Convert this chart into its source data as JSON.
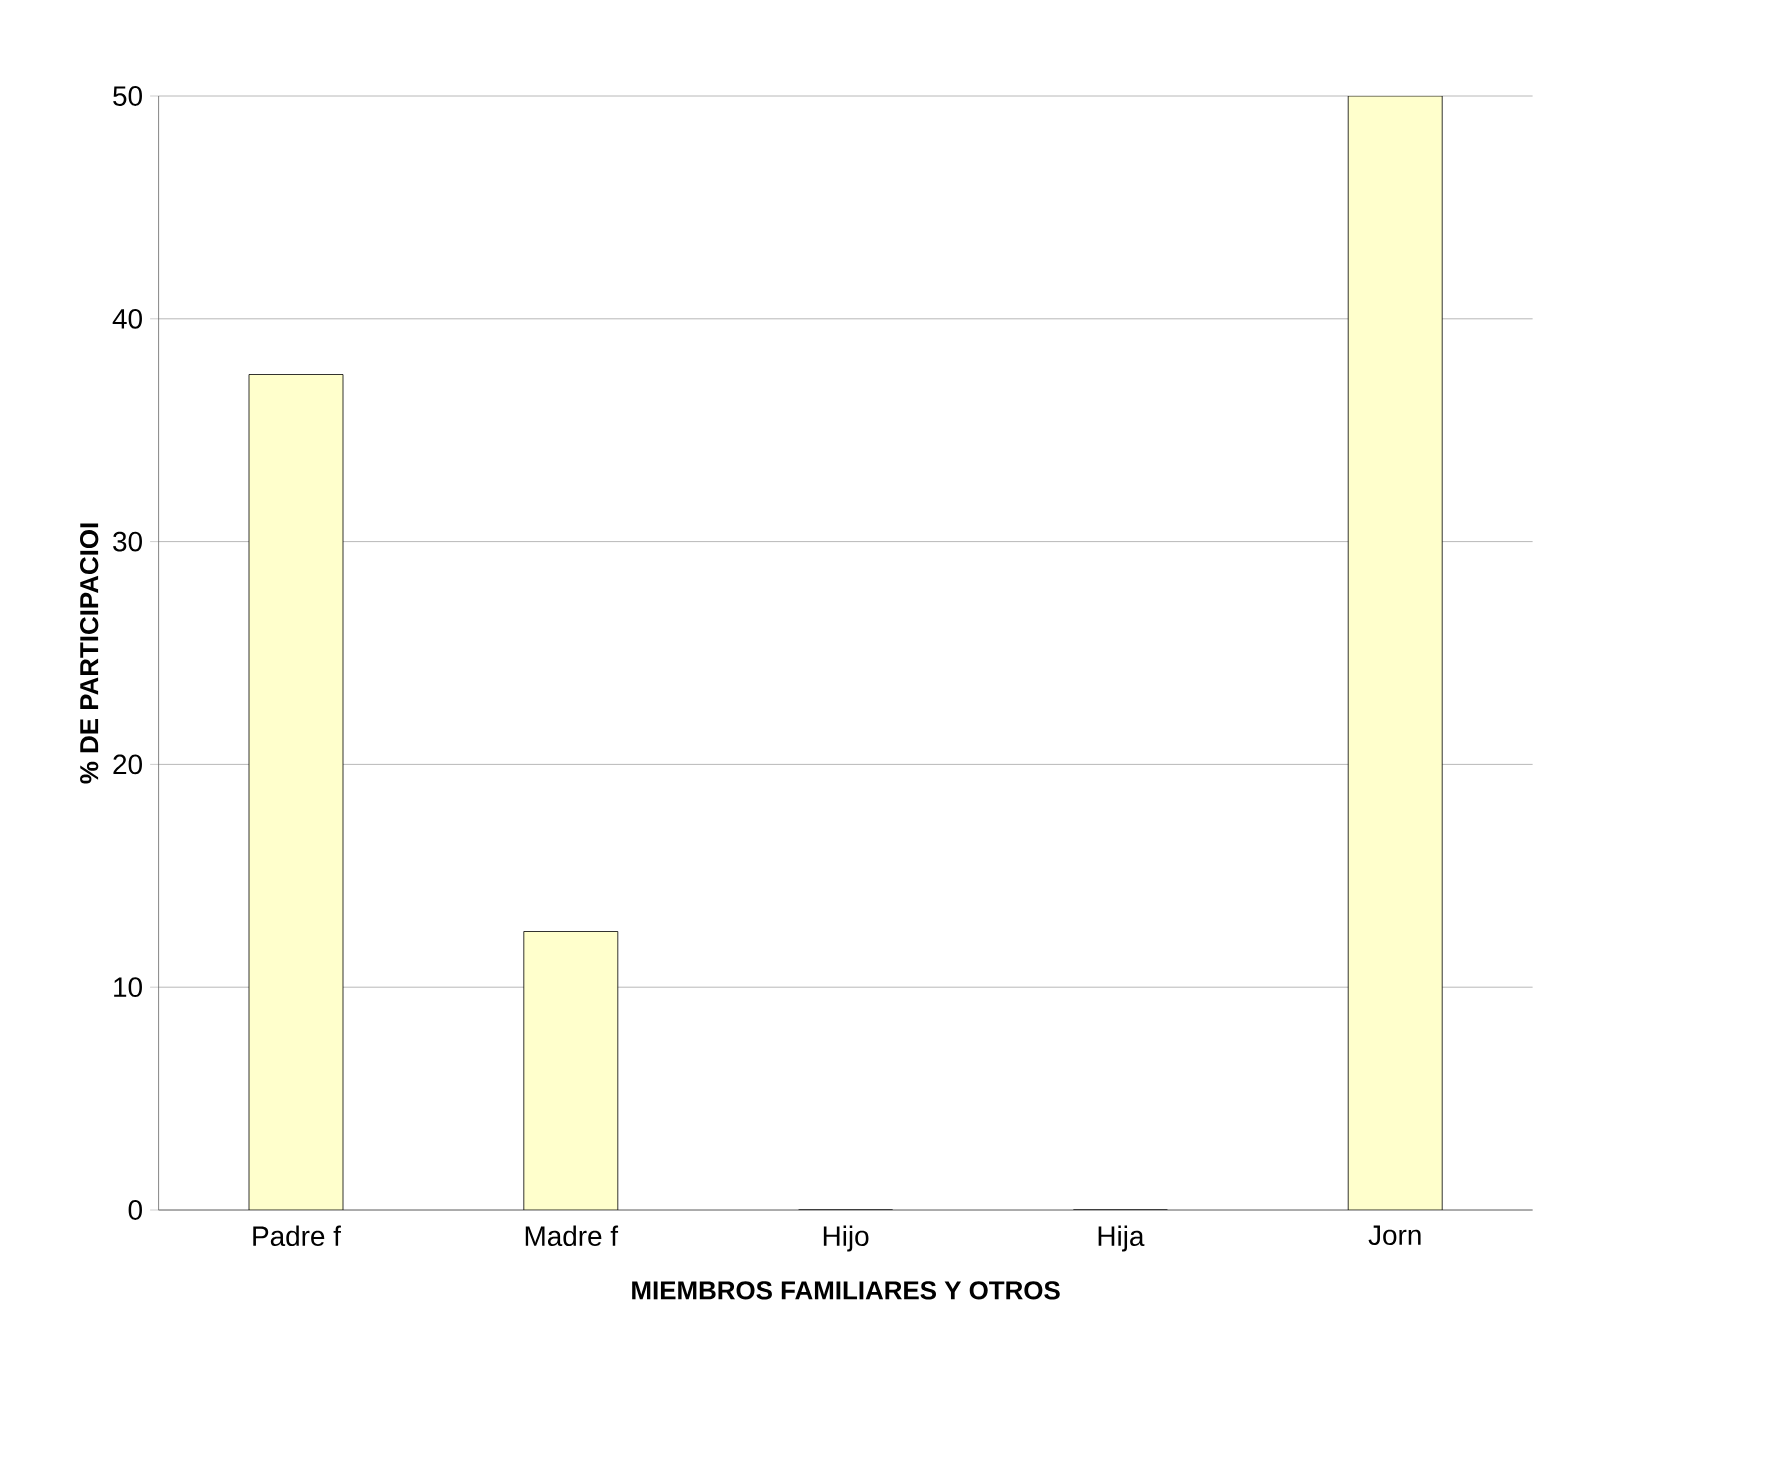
{
  "chart_data": {
    "type": "bar",
    "xlabel": "MIEMBROS FAMILIARES Y OTROS",
    "ylabel": "% DE PARTICIPACIOI",
    "categories": [
      "Padre f",
      "Madre f",
      "Hijo",
      "Hija",
      "Jorn"
    ],
    "values": [
      37.5,
      12.5,
      0,
      0,
      50
    ],
    "color": "#ffffcc",
    "ylim": [
      0,
      50
    ],
    "yticks": [
      0,
      10,
      20,
      30,
      40,
      50
    ],
    "grid": "y"
  }
}
